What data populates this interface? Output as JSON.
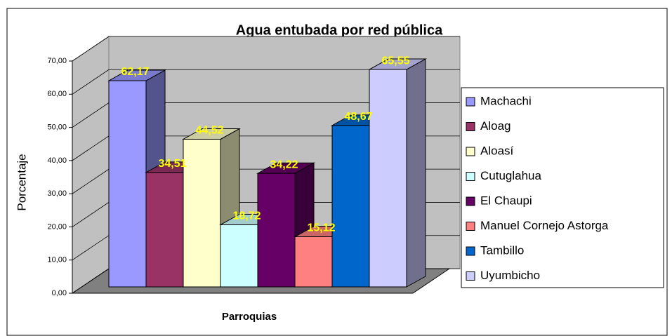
{
  "chart_data": {
    "type": "bar3d",
    "title": "Agua entubada por red pública",
    "categories": [
      "Machachi",
      "Aloag",
      "Aloasí",
      "Cutuglahua",
      "El Chaupi",
      "Manuel Cornejo Astorga",
      "Tambillo",
      "Uyumbicho"
    ],
    "values": [
      62.17,
      34.51,
      44.52,
      18.72,
      34.22,
      15.12,
      48.67,
      65.55
    ],
    "value_labels": [
      "62,17",
      "34,51",
      "44,52",
      "18,72",
      "34,22",
      "15,12",
      "48,67",
      "65,55"
    ],
    "colors": [
      "#9999ff",
      "#993366",
      "#ffffcc",
      "#ccffff",
      "#660066",
      "#ff8080",
      "#0066cc",
      "#ccccff"
    ],
    "x_label": "Parroquias",
    "y_label": "Porcentaje",
    "ylim": [
      0,
      70
    ],
    "yticks": [
      {
        "value": 0,
        "label": "0,00"
      },
      {
        "value": 10,
        "label": "10,00"
      },
      {
        "value": 20,
        "label": "20,00"
      },
      {
        "value": 30,
        "label": "30,00"
      },
      {
        "value": 40,
        "label": "40,00"
      },
      {
        "value": 50,
        "label": "50,00"
      },
      {
        "value": 60,
        "label": "60,00"
      },
      {
        "value": 70,
        "label": "70,00"
      }
    ],
    "grid": true,
    "legend": "right"
  }
}
